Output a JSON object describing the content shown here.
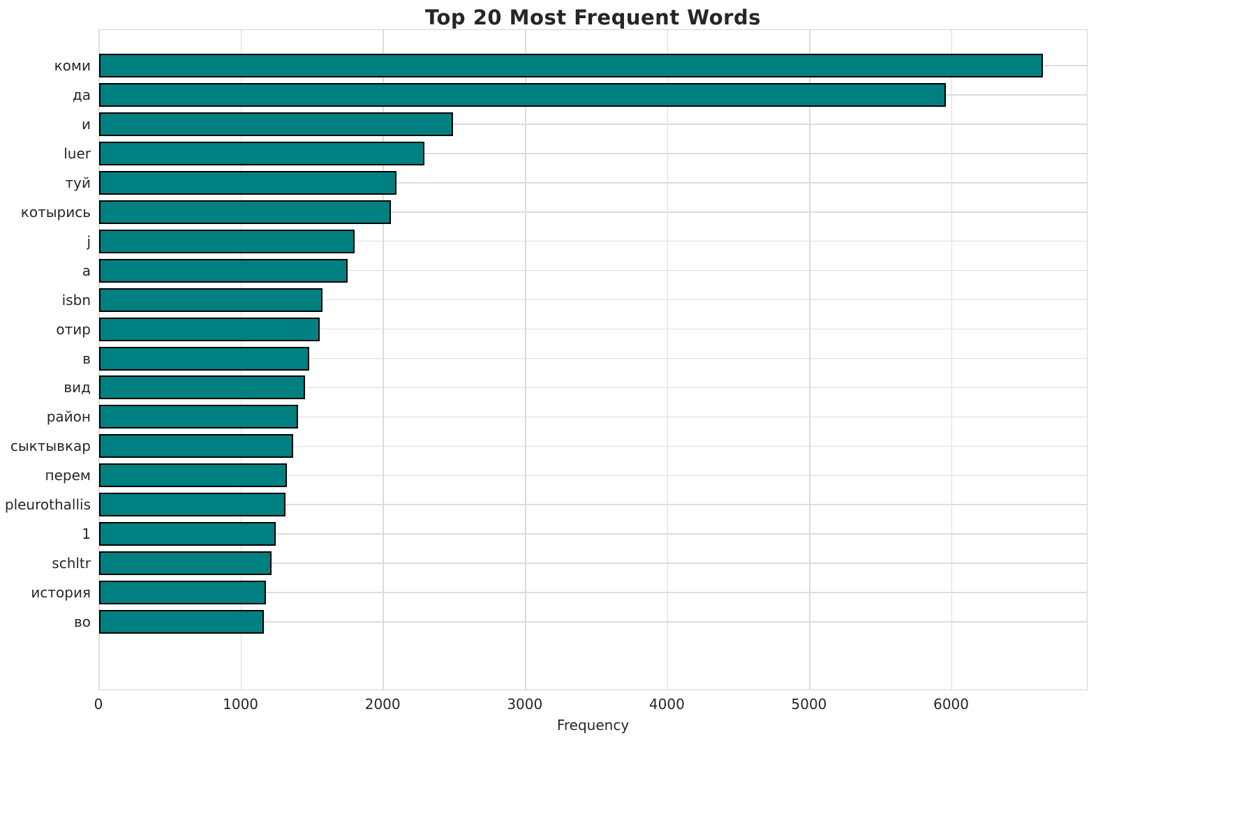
{
  "figure": {
    "title": "Top 20 Most Frequent Words"
  },
  "chart_data": {
    "type": "bar",
    "orientation": "horizontal",
    "title": "Top 20 Most Frequent Words",
    "xlabel": "Frequency",
    "ylabel": "",
    "categories": [
      "коми",
      "да",
      "и",
      "luer",
      "туй",
      "котырись",
      "j",
      "a",
      "isbn",
      "отир",
      "в",
      "вид",
      "район",
      "сыктывкар",
      "перем",
      "pleurothallis",
      "1",
      "schltr",
      "история",
      "во"
    ],
    "values": [
      6640,
      5960,
      2490,
      2290,
      2090,
      2055,
      1800,
      1750,
      1570,
      1550,
      1480,
      1450,
      1400,
      1365,
      1320,
      1310,
      1245,
      1215,
      1175,
      1160
    ],
    "xlim": [
      0,
      6960
    ],
    "xticks": [
      0,
      1000,
      2000,
      3000,
      4000,
      5000,
      6000
    ],
    "grid": true,
    "legend": "none",
    "bar_color": "#008080",
    "bar_edge_color": "#000000",
    "grid_color": "#dcdcdc",
    "text_color": "#262626",
    "background_color": "#ffffff"
  }
}
